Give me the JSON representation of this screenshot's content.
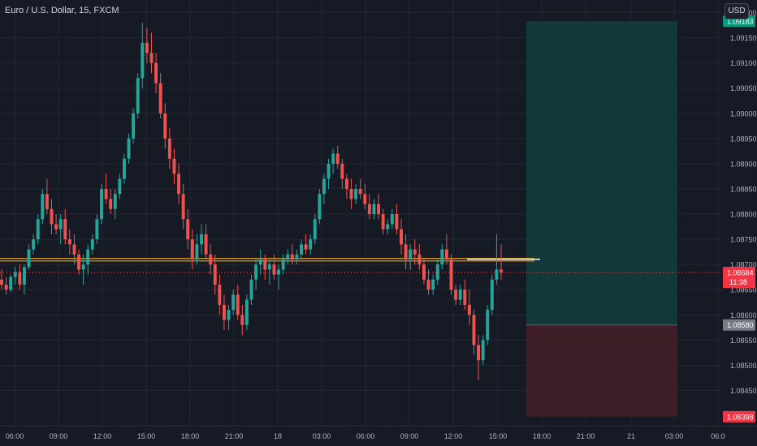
{
  "header": {
    "symbol_title": "Euro / U.S. Dollar, 15, FXCM",
    "currency_button": "USD"
  },
  "colors": {
    "background": "#161a25",
    "grid": "#232733",
    "up": "#26a69a",
    "down": "#ef5350",
    "horizontal_line": "#f0a31e",
    "target_zone": "#13383a",
    "stop_zone": "#3e1f27"
  },
  "chart_data": {
    "type": "candlestick",
    "title": "Euro / U.S. Dollar, 15, FXCM",
    "xlabel": "",
    "ylabel": "",
    "ylim": [
      1.0838,
      1.09225
    ],
    "y_ticks": [
      "1.09200",
      "1.09150",
      "1.09100",
      "1.09050",
      "1.09000",
      "1.08950",
      "1.08900",
      "1.08850",
      "1.08800",
      "1.08750",
      "1.08700",
      "1.08650",
      "1.08600",
      "1.08550",
      "1.08500",
      "1.08450"
    ],
    "x_ticks": [
      "06:00",
      "09:00",
      "12:00",
      "15:00",
      "18:00",
      "21:00",
      "18",
      "03:00",
      "06:00",
      "09:00",
      "12:00",
      "15:00",
      "18:00",
      "21:00",
      "21",
      "03:00",
      "06:0"
    ],
    "grid": true,
    "price_labels": [
      {
        "text": "1.09183",
        "value": 1.09183,
        "color": "#089981"
      },
      {
        "text": "1.08684",
        "value": 1.08684,
        "color": "#f23645",
        "countdown": "11:38"
      },
      {
        "text": "1.08580",
        "value": 1.0858,
        "color": "#787b86"
      },
      {
        "text": "1.08398",
        "value": 1.08398,
        "color": "#f23645"
      }
    ],
    "horizontal_levels": [
      1.08712,
      1.08707
    ],
    "last_price": 1.08684,
    "position": {
      "target": 1.09183,
      "entry": 1.0858,
      "stop": 1.08398
    },
    "candles": [
      [
        1.0867,
        1.0869,
        1.0865,
        1.0866
      ],
      [
        1.0866,
        1.08675,
        1.0864,
        1.0865
      ],
      [
        1.0865,
        1.0868,
        1.08645,
        1.08675
      ],
      [
        1.08675,
        1.08695,
        1.0866,
        1.08685
      ],
      [
        1.08685,
        1.087,
        1.0865,
        1.0866
      ],
      [
        1.0866,
        1.087,
        1.0864,
        1.08695
      ],
      [
        1.08695,
        1.0874,
        1.0869,
        1.0873
      ],
      [
        1.0873,
        1.0876,
        1.0872,
        1.0875
      ],
      [
        1.0875,
        1.088,
        1.0874,
        1.0879
      ],
      [
        1.0879,
        1.0885,
        1.0878,
        1.0884
      ],
      [
        1.0884,
        1.0887,
        1.088,
        1.0881
      ],
      [
        1.0881,
        1.0883,
        1.0876,
        1.0878
      ],
      [
        1.0878,
        1.088,
        1.0876,
        1.0877
      ],
      [
        1.0877,
        1.088,
        1.0874,
        1.0879
      ],
      [
        1.0879,
        1.0881,
        1.0874,
        1.0875
      ],
      [
        1.0875,
        1.0877,
        1.0872,
        1.0874
      ],
      [
        1.0874,
        1.0876,
        1.087,
        1.0872
      ],
      [
        1.0872,
        1.0873,
        1.0868,
        1.0869
      ],
      [
        1.0869,
        1.0872,
        1.0866,
        1.087
      ],
      [
        1.087,
        1.0874,
        1.0868,
        1.0873
      ],
      [
        1.0873,
        1.0876,
        1.0872,
        1.0875
      ],
      [
        1.0875,
        1.088,
        1.0874,
        1.0879
      ],
      [
        1.0879,
        1.0886,
        1.0878,
        1.0885
      ],
      [
        1.0885,
        1.0888,
        1.0882,
        1.0883
      ],
      [
        1.0883,
        1.0885,
        1.088,
        1.0881
      ],
      [
        1.0881,
        1.0885,
        1.0879,
        1.0884
      ],
      [
        1.0884,
        1.0888,
        1.0883,
        1.0887
      ],
      [
        1.0887,
        1.0892,
        1.0886,
        1.0891
      ],
      [
        1.0891,
        1.0896,
        1.089,
        1.0895
      ],
      [
        1.0895,
        1.0901,
        1.0894,
        1.09
      ],
      [
        1.09,
        1.0908,
        1.0899,
        1.0907
      ],
      [
        1.0907,
        1.0918,
        1.0905,
        1.0914
      ],
      [
        1.0914,
        1.0917,
        1.091,
        1.0912
      ],
      [
        1.0912,
        1.0916,
        1.0908,
        1.091
      ],
      [
        1.091,
        1.0912,
        1.0904,
        1.0906
      ],
      [
        1.0906,
        1.0908,
        1.0899,
        1.09
      ],
      [
        1.09,
        1.0902,
        1.0893,
        1.0895
      ],
      [
        1.0895,
        1.0897,
        1.0889,
        1.0891
      ],
      [
        1.0891,
        1.0893,
        1.0886,
        1.0888
      ],
      [
        1.0888,
        1.089,
        1.0882,
        1.0884
      ],
      [
        1.0884,
        1.0886,
        1.0877,
        1.0879
      ],
      [
        1.0879,
        1.0881,
        1.0873,
        1.0875
      ],
      [
        1.0875,
        1.0877,
        1.0869,
        1.0871
      ],
      [
        1.0871,
        1.0876,
        1.087,
        1.0874
      ],
      [
        1.0874,
        1.0878,
        1.0872,
        1.0876
      ],
      [
        1.0876,
        1.0878,
        1.0871,
        1.0872
      ],
      [
        1.0872,
        1.0874,
        1.0868,
        1.087
      ],
      [
        1.087,
        1.0872,
        1.0864,
        1.0866
      ],
      [
        1.0866,
        1.0868,
        1.086,
        1.0862
      ],
      [
        1.0862,
        1.0864,
        1.0857,
        1.0859
      ],
      [
        1.0859,
        1.0862,
        1.0857,
        1.0861
      ],
      [
        1.0861,
        1.0865,
        1.086,
        1.0864
      ],
      [
        1.0864,
        1.0866,
        1.0859,
        1.086
      ],
      [
        1.086,
        1.0862,
        1.0856,
        1.0858
      ],
      [
        1.0858,
        1.0864,
        1.0857,
        1.0863
      ],
      [
        1.0863,
        1.0868,
        1.0862,
        1.0867
      ],
      [
        1.0867,
        1.0871,
        1.0865,
        1.087
      ],
      [
        1.087,
        1.0873,
        1.0868,
        1.0871
      ],
      [
        1.0871,
        1.0872,
        1.0867,
        1.0869
      ],
      [
        1.0869,
        1.0871,
        1.0866,
        1.087
      ],
      [
        1.087,
        1.0872,
        1.0867,
        1.0868
      ],
      [
        1.0868,
        1.087,
        1.0865,
        1.0869
      ],
      [
        1.0869,
        1.0872,
        1.0868,
        1.0871
      ],
      [
        1.0871,
        1.0873,
        1.087,
        1.0872
      ],
      [
        1.0872,
        1.0874,
        1.087,
        1.0871
      ],
      [
        1.0871,
        1.0873,
        1.087,
        1.0872
      ],
      [
        1.0872,
        1.0875,
        1.0871,
        1.0874
      ],
      [
        1.0874,
        1.0876,
        1.0872,
        1.0873
      ],
      [
        1.0873,
        1.0876,
        1.0872,
        1.0875
      ],
      [
        1.0875,
        1.088,
        1.0874,
        1.0879
      ],
      [
        1.0879,
        1.0885,
        1.0878,
        1.0884
      ],
      [
        1.0884,
        1.0888,
        1.0882,
        1.0887
      ],
      [
        1.0887,
        1.0891,
        1.0885,
        1.089
      ],
      [
        1.089,
        1.0893,
        1.0888,
        1.0892
      ],
      [
        1.0892,
        1.08935,
        1.0889,
        1.089
      ],
      [
        1.089,
        1.0891,
        1.0885,
        1.0887
      ],
      [
        1.0887,
        1.0888,
        1.0883,
        1.0885
      ],
      [
        1.0885,
        1.0887,
        1.0881,
        1.0883
      ],
      [
        1.0883,
        1.0886,
        1.0882,
        1.0885
      ],
      [
        1.0885,
        1.0887,
        1.0883,
        1.0884
      ],
      [
        1.0884,
        1.0886,
        1.0881,
        1.0882
      ],
      [
        1.0882,
        1.0884,
        1.0879,
        1.088
      ],
      [
        1.088,
        1.0883,
        1.0879,
        1.0882
      ],
      [
        1.0882,
        1.0884,
        1.0879,
        1.088
      ],
      [
        1.088,
        1.0881,
        1.0876,
        1.0877
      ],
      [
        1.0877,
        1.0879,
        1.0876,
        1.0878
      ],
      [
        1.0878,
        1.0881,
        1.0877,
        1.088
      ],
      [
        1.088,
        1.0882,
        1.0876,
        1.0877
      ],
      [
        1.0877,
        1.0879,
        1.0872,
        1.0874
      ],
      [
        1.0874,
        1.0876,
        1.0869,
        1.0871
      ],
      [
        1.0871,
        1.0874,
        1.0869,
        1.0873
      ],
      [
        1.0873,
        1.0875,
        1.087,
        1.0872
      ],
      [
        1.0872,
        1.0874,
        1.0869,
        1.087
      ],
      [
        1.087,
        1.0871,
        1.0866,
        1.0867
      ],
      [
        1.0867,
        1.0869,
        1.0864,
        1.0865
      ],
      [
        1.0865,
        1.0868,
        1.0864,
        1.0867
      ],
      [
        1.0867,
        1.0871,
        1.0866,
        1.087
      ],
      [
        1.087,
        1.0874,
        1.0869,
        1.0873
      ],
      [
        1.0873,
        1.0876,
        1.087,
        1.0871
      ],
      [
        1.0871,
        1.0872,
        1.0864,
        1.0865
      ],
      [
        1.0865,
        1.0866,
        1.0862,
        1.0863
      ],
      [
        1.0863,
        1.0866,
        1.0862,
        1.0865
      ],
      [
        1.0865,
        1.0867,
        1.0861,
        1.0862
      ],
      [
        1.0862,
        1.0865,
        1.0858,
        1.086
      ],
      [
        1.086,
        1.0861,
        1.0852,
        1.0854
      ],
      [
        1.0854,
        1.0856,
        1.0847,
        1.0851
      ],
      [
        1.0851,
        1.0856,
        1.085,
        1.0855
      ],
      [
        1.0855,
        1.0862,
        1.0854,
        1.0861
      ],
      [
        1.0861,
        1.0868,
        1.086,
        1.0867
      ],
      [
        1.0867,
        1.0876,
        1.0866,
        1.0869
      ],
      [
        1.0869,
        1.0874,
        1.0867,
        1.08684
      ]
    ]
  }
}
